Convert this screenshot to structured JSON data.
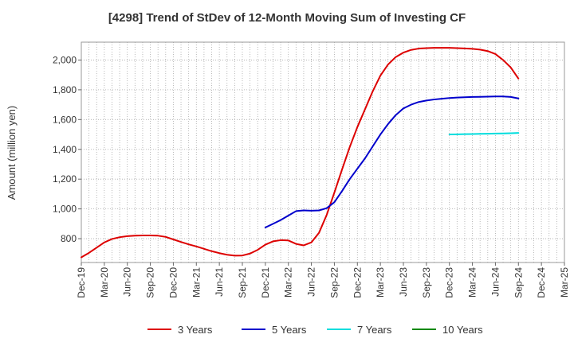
{
  "chart_data": {
    "type": "line",
    "title": "[4298]  Trend of StDev of 12-Month Moving Sum of Investing CF",
    "ylabel": "Amount (million yen)",
    "xlabel": "",
    "ylim": [
      640,
      2120
    ],
    "yticks": [
      800,
      1000,
      1200,
      1400,
      1600,
      1800,
      2000
    ],
    "ytick_labels": [
      "800",
      "1,000",
      "1,200",
      "1,400",
      "1,600",
      "1,800",
      "2,000"
    ],
    "xtick_labels": [
      "Dec-19",
      "Mar-20",
      "Jun-20",
      "Sep-20",
      "Dec-20",
      "Mar-21",
      "Jun-21",
      "Sep-21",
      "Dec-21",
      "Mar-22",
      "Jun-22",
      "Sep-22",
      "Dec-22",
      "Mar-23",
      "Jun-23",
      "Sep-23",
      "Dec-23",
      "Mar-24",
      "Jun-24",
      "Sep-24",
      "Dec-24",
      "Mar-25"
    ],
    "grid": true,
    "legend_position": "bottom",
    "series": [
      {
        "name": "3 Years",
        "color": "#dd0000",
        "x": [
          "Dec-19",
          "Jan-20",
          "Feb-20",
          "Mar-20",
          "Apr-20",
          "May-20",
          "Jun-20",
          "Jul-20",
          "Aug-20",
          "Sep-20",
          "Oct-20",
          "Nov-20",
          "Dec-20",
          "Jan-21",
          "Feb-21",
          "Mar-21",
          "Apr-21",
          "May-21",
          "Jun-21",
          "Jul-21",
          "Aug-21",
          "Sep-21",
          "Oct-21",
          "Nov-21",
          "Dec-21",
          "Jan-22",
          "Feb-22",
          "Mar-22",
          "Apr-22",
          "May-22",
          "Jun-22",
          "Jul-22",
          "Aug-22",
          "Sep-22",
          "Oct-22",
          "Nov-22",
          "Dec-22",
          "Jan-23",
          "Feb-23",
          "Mar-23",
          "Apr-23",
          "May-23",
          "Jun-23",
          "Jul-23",
          "Aug-23",
          "Sep-23",
          "Oct-23",
          "Nov-23",
          "Dec-23",
          "Jan-24",
          "Feb-24",
          "Mar-24",
          "Apr-24",
          "May-24",
          "Jun-24",
          "Jul-24",
          "Aug-24",
          "Sep-24"
        ],
        "values": [
          675,
          705,
          740,
          775,
          798,
          810,
          817,
          820,
          822,
          822,
          820,
          812,
          795,
          778,
          762,
          748,
          732,
          716,
          703,
          692,
          686,
          687,
          700,
          725,
          760,
          782,
          790,
          788,
          765,
          755,
          775,
          840,
          960,
          1110,
          1265,
          1415,
          1550,
          1670,
          1790,
          1895,
          1970,
          2020,
          2050,
          2068,
          2077,
          2080,
          2082,
          2082,
          2082,
          2080,
          2078,
          2075,
          2070,
          2060,
          2040,
          2000,
          1950,
          1875
        ]
      },
      {
        "name": "5 Years",
        "color": "#0000cc",
        "x": [
          "Dec-21",
          "Jan-22",
          "Feb-22",
          "Mar-22",
          "Apr-22",
          "May-22",
          "Jun-22",
          "Jul-22",
          "Aug-22",
          "Sep-22",
          "Oct-22",
          "Nov-22",
          "Dec-22",
          "Jan-23",
          "Feb-23",
          "Mar-23",
          "Apr-23",
          "May-23",
          "Jun-23",
          "Jul-23",
          "Aug-23",
          "Sep-23",
          "Oct-23",
          "Nov-23",
          "Dec-23",
          "Jan-24",
          "Feb-24",
          "Mar-24",
          "Apr-24",
          "May-24",
          "Jun-24",
          "Jul-24",
          "Aug-24",
          "Sep-24"
        ],
        "values": [
          875,
          900,
          925,
          955,
          985,
          990,
          988,
          990,
          1005,
          1045,
          1120,
          1200,
          1270,
          1340,
          1420,
          1500,
          1570,
          1630,
          1675,
          1700,
          1718,
          1728,
          1735,
          1740,
          1745,
          1748,
          1750,
          1752,
          1753,
          1754,
          1755,
          1755,
          1752,
          1742
        ]
      },
      {
        "name": "7 Years",
        "color": "#00dddd",
        "x": [
          "Dec-23",
          "Jan-24",
          "Feb-24",
          "Mar-24",
          "Apr-24",
          "May-24",
          "Jun-24",
          "Jul-24",
          "Aug-24",
          "Sep-24"
        ],
        "values": [
          1500,
          1501,
          1502,
          1503,
          1504,
          1505,
          1506,
          1507,
          1508,
          1510
        ]
      },
      {
        "name": "10 Years",
        "color": "#008800",
        "x": [],
        "values": []
      }
    ]
  }
}
